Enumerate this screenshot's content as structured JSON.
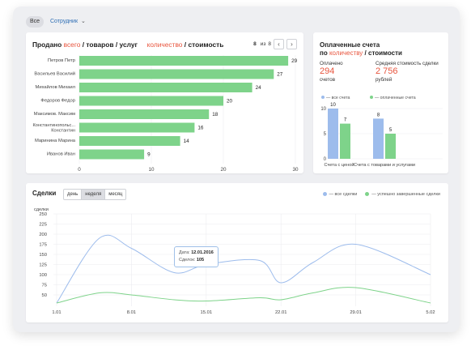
{
  "filters": {
    "all_label": "Все",
    "employee_label": "Сотрудник"
  },
  "sold": {
    "title_prefix": "Продано",
    "title_all": "всего",
    "title_goods": "/ товаров / услуг",
    "title_qty": "количество",
    "title_cost": "/ стоимость",
    "page_current": "8",
    "page_of": "из",
    "page_total": "8",
    "prev_label": "‹",
    "next_label": "›"
  },
  "chart_data": [
    {
      "type": "bar",
      "orientation": "horizontal",
      "categories": [
        "Петров Петр",
        "Васильев Василий",
        "Михайлов Михаил",
        "Федоров Федор",
        "Максимов. Максим",
        "Константинопольс... Константин",
        "Маринина Марина",
        "Иванов Иван"
      ],
      "values": [
        29,
        27,
        24,
        20,
        18,
        16,
        14,
        9
      ],
      "xlim": [
        0,
        30
      ],
      "xticks": [
        0,
        10,
        20,
        30
      ],
      "color": "#7ed38a",
      "grid": true
    },
    {
      "type": "bar",
      "categories": [
        "Счета с ценой",
        "Счета с товарами и услугами"
      ],
      "series": [
        {
          "name": "— все счета",
          "values": [
            10,
            8
          ],
          "color": "#9dbcec"
        },
        {
          "name": "— оплаченные счета",
          "values": [
            7,
            5
          ],
          "color": "#7ed38a"
        }
      ],
      "ylim": [
        0,
        10
      ],
      "yticks": [
        0,
        5,
        10
      ]
    },
    {
      "type": "line",
      "ylabel": "сделки",
      "ylim": [
        0,
        250
      ],
      "yticks": [
        50,
        75,
        100,
        125,
        150,
        175,
        200,
        225,
        250
      ],
      "x_ticks": [
        "1.01",
        "8.01",
        "15.01",
        "22.01",
        "29.01",
        "5.02"
      ],
      "series": [
        {
          "name": "— все сделки",
          "color": "#9dbcec",
          "x": [
            "1.01",
            "5.01",
            "8.01",
            "12.01",
            "15.01",
            "20.01",
            "22.01",
            "25.01",
            "29.01",
            "5.02"
          ],
          "values": [
            30,
            190,
            165,
            105,
            125,
            135,
            80,
            130,
            175,
            100
          ]
        },
        {
          "name": "— успешно завершенные сделки",
          "color": "#7ed38a",
          "x": [
            "1.01",
            "5.01",
            "8.01",
            "12.01",
            "15.01",
            "20.01",
            "22.01",
            "25.01",
            "29.01",
            "5.02"
          ],
          "values": [
            30,
            55,
            50,
            38,
            35,
            43,
            38,
            55,
            68,
            30
          ]
        }
      ]
    }
  ],
  "invoices": {
    "title_line1": "Оплаченные счета",
    "title_line2_prefix": "по",
    "title_qty": "количеству",
    "title_cost": "/ стоимости",
    "paid_label": "Оплачено",
    "paid_value": "294",
    "paid_unit": "счетов",
    "avg_label": "Средняя стоимость сделки",
    "avg_value": "2 756",
    "avg_unit": "рублей"
  },
  "deals": {
    "title": "Сделки",
    "periods": [
      "день",
      "неделя",
      "месяц"
    ],
    "tooltip": {
      "date_label": "Дата:",
      "date_value": "12.01.2016",
      "count_label": "Сделок:",
      "count_value": "105"
    }
  }
}
